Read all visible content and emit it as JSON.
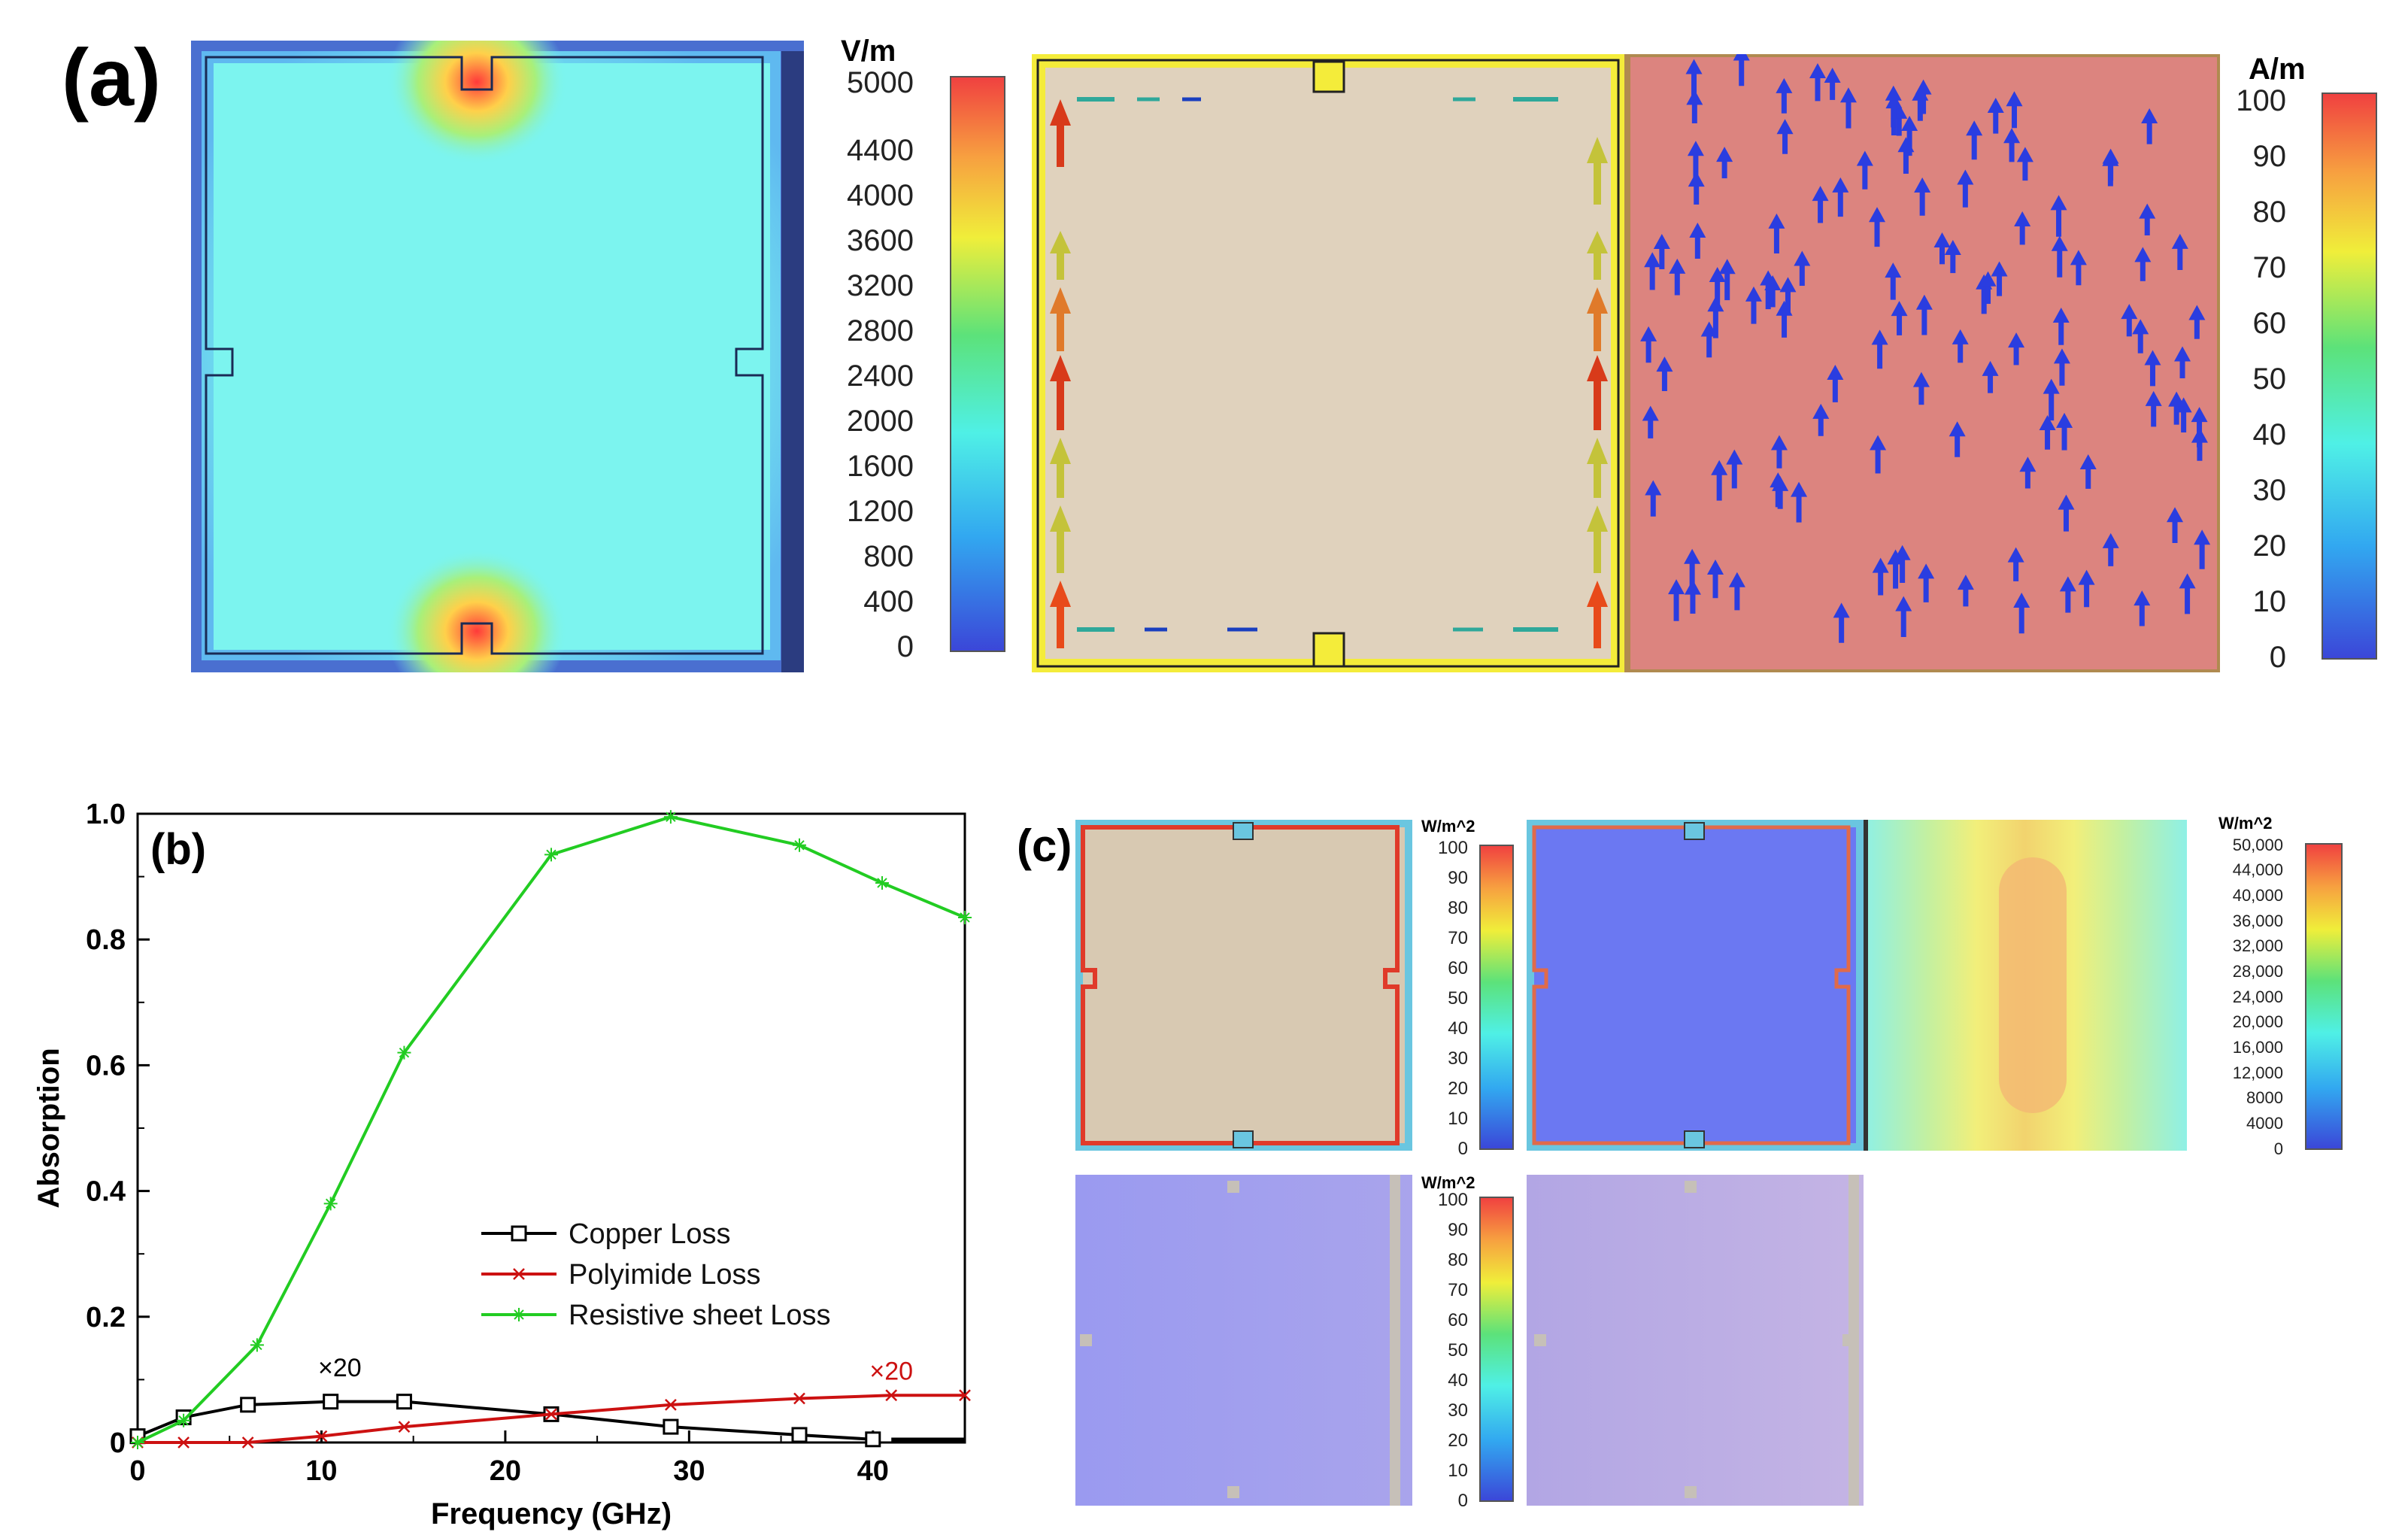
{
  "panel_a": {
    "label": "(a)",
    "efield_unit": "V/m",
    "efield_ticks": [
      "5000",
      "4400",
      "4000",
      "3600",
      "3200",
      "2800",
      "2400",
      "2000",
      "1600",
      "1200",
      "800",
      "400",
      "0"
    ],
    "hfield_unit": "A/m",
    "hfield_ticks": [
      "100",
      "90",
      "80",
      "70",
      "60",
      "50",
      "40",
      "30",
      "20",
      "10",
      "0"
    ]
  },
  "panel_b": {
    "label": "(b)"
  },
  "panel_c": {
    "label": "(c)",
    "unit1": "W/m^2",
    "ticks1": [
      "100",
      "90",
      "80",
      "70",
      "60",
      "50",
      "40",
      "30",
      "20",
      "10",
      "0"
    ],
    "unit2": "W/m^2",
    "ticks2": [
      "50,000",
      "44,000",
      "40,000",
      "36,000",
      "32,000",
      "28,000",
      "24,000",
      "20,000",
      "16,000",
      "12,000",
      "8000",
      "4000",
      "0"
    ],
    "unit3": "W/m^2",
    "ticks3": [
      "100",
      "90",
      "80",
      "70",
      "60",
      "50",
      "40",
      "30",
      "20",
      "10",
      "0"
    ]
  },
  "colors": {
    "copper": "#000000",
    "polyimide": "#cc1111",
    "resistive": "#22cc22"
  },
  "chart_data": {
    "type": "line",
    "title": "",
    "xlabel": "Frequency (GHz)",
    "ylabel": "Absorption",
    "xlim": [
      0,
      45
    ],
    "ylim": [
      0,
      1.0
    ],
    "x_ticks": [
      0,
      10,
      20,
      30,
      40
    ],
    "y_ticks": [
      0,
      0.2,
      0.4,
      0.6,
      0.8,
      1.0
    ],
    "x_tick_labels": [
      "0",
      "10",
      "20",
      "30",
      "40"
    ],
    "y_tick_labels": [
      "0",
      "0.2",
      "0.4",
      "0.6",
      "0.8",
      "1.0"
    ],
    "legend_position": "center-right",
    "series": [
      {
        "name": "Copper Loss",
        "color": "#000000",
        "marker": "square",
        "x": [
          0,
          2.5,
          6,
          10.5,
          14.5,
          22.5,
          29,
          36,
          40
        ],
        "y": [
          0.01,
          0.04,
          0.06,
          0.065,
          0.065,
          0.045,
          0.025,
          0.012,
          0.005
        ]
      },
      {
        "name": "Polyimide Loss",
        "color": "#cc1111",
        "marker": "x",
        "x": [
          0,
          2.5,
          6,
          10,
          14.5,
          22.5,
          29,
          36,
          41,
          45
        ],
        "y": [
          0,
          0.0,
          0.0,
          0.01,
          0.025,
          0.045,
          0.06,
          0.07,
          0.075,
          0.075
        ]
      },
      {
        "name": "Resistive sheet Loss",
        "color": "#22cc22",
        "marker": "star",
        "x": [
          0,
          2.5,
          6.5,
          10.5,
          14.5,
          22.5,
          29,
          36,
          40.5,
          45
        ],
        "y": [
          0,
          0.035,
          0.155,
          0.38,
          0.62,
          0.935,
          0.995,
          0.95,
          0.89,
          0.835
        ]
      }
    ],
    "annotations": [
      {
        "text": "×20",
        "x": 11,
        "y": 0.105,
        "color": "#000000"
      },
      {
        "text": "×20",
        "x": 41,
        "y": 0.1,
        "color": "#cc1111"
      }
    ]
  }
}
